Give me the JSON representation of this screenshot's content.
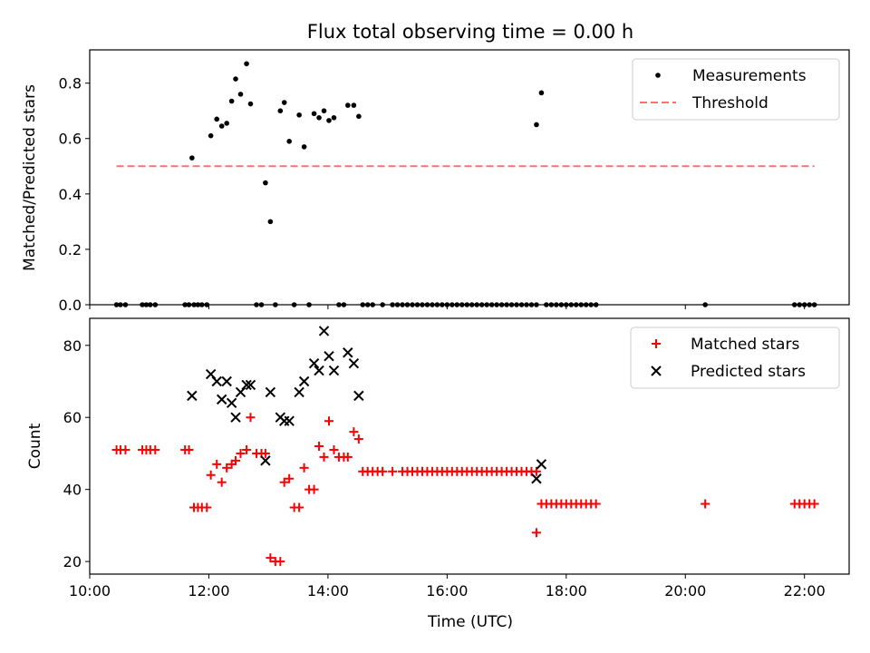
{
  "figure": {
    "title": "Flux total observing time = 0.00 h",
    "xlabel": "Time (UTC)"
  },
  "colors": {
    "measurement": "#000000",
    "threshold": "#ff7070",
    "matched": "#ff0000",
    "predicted": "#000000"
  },
  "chart_data": [
    {
      "type": "scatter",
      "ylabel": "Matched/Predicted stars",
      "xlim": [
        "10:00",
        "22:45"
      ],
      "ylim": [
        0,
        0.92
      ],
      "xticks": [
        "10:00",
        "12:00",
        "14:00",
        "16:00",
        "18:00",
        "20:00",
        "22:00"
      ],
      "yticks": [
        0.0,
        0.2,
        0.4,
        0.6,
        0.8
      ],
      "ytick_labels": [
        "0.0",
        "0.2",
        "0.4",
        "0.6",
        "0.8"
      ],
      "legend": {
        "location": "top-right",
        "entries": [
          "Measurements",
          "Threshold"
        ]
      },
      "series": [
        {
          "name": "Measurements",
          "marker": "dot",
          "points": [
            [
              "10:27",
              0
            ],
            [
              "10:31",
              0
            ],
            [
              "10:36",
              0
            ],
            [
              "10:53",
              0
            ],
            [
              "10:57",
              0
            ],
            [
              "11:01",
              0
            ],
            [
              "11:06",
              0
            ],
            [
              "11:36",
              0
            ],
            [
              "11:40",
              0
            ],
            [
              "11:45",
              0
            ],
            [
              "11:49",
              0
            ],
            [
              "11:53",
              0
            ],
            [
              "11:58",
              0
            ],
            [
              "11:43",
              0.53
            ],
            [
              "12:02",
              0.61
            ],
            [
              "12:08",
              0.67
            ],
            [
              "12:13",
              0.645
            ],
            [
              "12:18",
              0.655
            ],
            [
              "12:23",
              0.735
            ],
            [
              "12:27",
              0.815
            ],
            [
              "12:32",
              0.76
            ],
            [
              "12:38",
              0.87
            ],
            [
              "12:42",
              0.725
            ],
            [
              "12:48",
              0
            ],
            [
              "12:53",
              0
            ],
            [
              "12:57",
              0.44
            ],
            [
              "13:02",
              0.3
            ],
            [
              "13:07",
              0
            ],
            [
              "13:12",
              0.7
            ],
            [
              "13:16",
              0.73
            ],
            [
              "13:21",
              0.59
            ],
            [
              "13:26",
              0
            ],
            [
              "13:31",
              0.685
            ],
            [
              "13:36",
              0.57
            ],
            [
              "13:41",
              0
            ],
            [
              "13:46",
              0.69
            ],
            [
              "13:51",
              0.675
            ],
            [
              "13:56",
              0.7
            ],
            [
              "14:01",
              0.665
            ],
            [
              "14:06",
              0.675
            ],
            [
              "14:11",
              0
            ],
            [
              "14:16",
              0
            ],
            [
              "14:20",
              0.72
            ],
            [
              "14:26",
              0.72
            ],
            [
              "14:31",
              0.68
            ],
            [
              "14:35",
              0
            ],
            [
              "14:40",
              0
            ],
            [
              "14:45",
              0
            ],
            [
              "14:55",
              0
            ],
            [
              "15:05",
              0
            ],
            [
              "15:10",
              0
            ],
            [
              "15:15",
              0
            ],
            [
              "15:20",
              0
            ],
            [
              "15:25",
              0
            ],
            [
              "15:30",
              0
            ],
            [
              "15:35",
              0
            ],
            [
              "15:40",
              0
            ],
            [
              "15:45",
              0
            ],
            [
              "15:50",
              0
            ],
            [
              "15:55",
              0
            ],
            [
              "16:00",
              0
            ],
            [
              "16:05",
              0
            ],
            [
              "16:10",
              0
            ],
            [
              "16:15",
              0
            ],
            [
              "16:20",
              0
            ],
            [
              "16:25",
              0
            ],
            [
              "16:30",
              0
            ],
            [
              "16:35",
              0
            ],
            [
              "16:40",
              0
            ],
            [
              "16:45",
              0
            ],
            [
              "16:50",
              0
            ],
            [
              "16:55",
              0
            ],
            [
              "17:00",
              0
            ],
            [
              "17:05",
              0
            ],
            [
              "17:10",
              0
            ],
            [
              "17:15",
              0
            ],
            [
              "17:20",
              0
            ],
            [
              "17:25",
              0
            ],
            [
              "17:30",
              0
            ],
            [
              "17:30",
              0.65
            ],
            [
              "17:35",
              0.765
            ],
            [
              "17:40",
              0
            ],
            [
              "17:45",
              0
            ],
            [
              "17:50",
              0
            ],
            [
              "17:55",
              0
            ],
            [
              "18:00",
              0
            ],
            [
              "18:05",
              0
            ],
            [
              "18:10",
              0
            ],
            [
              "18:15",
              0
            ],
            [
              "18:20",
              0
            ],
            [
              "18:25",
              0
            ],
            [
              "18:30",
              0
            ],
            [
              "20:20",
              0
            ],
            [
              "21:50",
              0
            ],
            [
              "21:55",
              0
            ],
            [
              "22:00",
              0
            ],
            [
              "22:05",
              0
            ],
            [
              "22:10",
              0
            ]
          ]
        },
        {
          "name": "Threshold",
          "style": "dashed-line",
          "points": [
            [
              "10:27",
              0.5
            ],
            [
              "22:10",
              0.5
            ]
          ]
        }
      ]
    },
    {
      "type": "scatter",
      "ylabel": "Count",
      "xlim": [
        "10:00",
        "22:45"
      ],
      "ylim": [
        16.5,
        87.5
      ],
      "xticks": [
        "10:00",
        "12:00",
        "14:00",
        "16:00",
        "18:00",
        "20:00",
        "22:00"
      ],
      "yticks": [
        20,
        40,
        60,
        80
      ],
      "ytick_labels": [
        "20",
        "40",
        "60",
        "80"
      ],
      "legend": {
        "location": "top-right",
        "entries": [
          "Matched stars",
          "Predicted stars"
        ]
      },
      "series": [
        {
          "name": "Matched stars",
          "marker": "plus",
          "points": [
            [
              "10:27",
              51
            ],
            [
              "10:31",
              51
            ],
            [
              "10:36",
              51
            ],
            [
              "10:53",
              51
            ],
            [
              "10:57",
              51
            ],
            [
              "11:01",
              51
            ],
            [
              "11:06",
              51
            ],
            [
              "11:36",
              51
            ],
            [
              "11:40",
              51
            ],
            [
              "11:45",
              35
            ],
            [
              "11:49",
              35
            ],
            [
              "11:53",
              35
            ],
            [
              "11:58",
              35
            ],
            [
              "12:02",
              44
            ],
            [
              "12:08",
              47
            ],
            [
              "12:13",
              42
            ],
            [
              "12:18",
              46
            ],
            [
              "12:23",
              47
            ],
            [
              "12:27",
              48
            ],
            [
              "12:32",
              50
            ],
            [
              "12:38",
              51
            ],
            [
              "12:42",
              60
            ],
            [
              "12:48",
              50
            ],
            [
              "12:53",
              50
            ],
            [
              "12:57",
              50
            ],
            [
              "13:02",
              21
            ],
            [
              "13:07",
              20
            ],
            [
              "13:12",
              20
            ],
            [
              "13:16",
              42
            ],
            [
              "13:21",
              43
            ],
            [
              "13:26",
              35
            ],
            [
              "13:31",
              35
            ],
            [
              "13:36",
              46
            ],
            [
              "13:41",
              40
            ],
            [
              "13:46",
              40
            ],
            [
              "13:51",
              52
            ],
            [
              "13:56",
              49
            ],
            [
              "14:01",
              59
            ],
            [
              "14:06",
              51
            ],
            [
              "14:11",
              49
            ],
            [
              "14:16",
              49
            ],
            [
              "14:20",
              49
            ],
            [
              "14:26",
              56
            ],
            [
              "14:31",
              54
            ],
            [
              "14:35",
              45
            ],
            [
              "14:40",
              45
            ],
            [
              "14:45",
              45
            ],
            [
              "14:50",
              45
            ],
            [
              "14:55",
              45
            ],
            [
              "15:05",
              45
            ],
            [
              "15:15",
              45
            ],
            [
              "15:20",
              45
            ],
            [
              "15:25",
              45
            ],
            [
              "15:30",
              45
            ],
            [
              "15:35",
              45
            ],
            [
              "15:40",
              45
            ],
            [
              "15:45",
              45
            ],
            [
              "15:50",
              45
            ],
            [
              "15:55",
              45
            ],
            [
              "16:00",
              45
            ],
            [
              "16:05",
              45
            ],
            [
              "16:10",
              45
            ],
            [
              "16:15",
              45
            ],
            [
              "16:20",
              45
            ],
            [
              "16:25",
              45
            ],
            [
              "16:30",
              45
            ],
            [
              "16:35",
              45
            ],
            [
              "16:40",
              45
            ],
            [
              "16:45",
              45
            ],
            [
              "16:50",
              45
            ],
            [
              "16:55",
              45
            ],
            [
              "17:00",
              45
            ],
            [
              "17:05",
              45
            ],
            [
              "17:10",
              45
            ],
            [
              "17:15",
              45
            ],
            [
              "17:20",
              45
            ],
            [
              "17:25",
              45
            ],
            [
              "17:30",
              45
            ],
            [
              "17:30",
              28
            ],
            [
              "17:35",
              36
            ],
            [
              "17:40",
              36
            ],
            [
              "17:45",
              36
            ],
            [
              "17:50",
              36
            ],
            [
              "17:55",
              36
            ],
            [
              "18:00",
              36
            ],
            [
              "18:05",
              36
            ],
            [
              "18:10",
              36
            ],
            [
              "18:15",
              36
            ],
            [
              "18:20",
              36
            ],
            [
              "18:25",
              36
            ],
            [
              "18:30",
              36
            ],
            [
              "20:20",
              36
            ],
            [
              "21:50",
              36
            ],
            [
              "21:55",
              36
            ],
            [
              "22:00",
              36
            ],
            [
              "22:05",
              36
            ],
            [
              "22:10",
              36
            ]
          ]
        },
        {
          "name": "Predicted stars",
          "marker": "x",
          "points": [
            [
              "11:43",
              66
            ],
            [
              "12:02",
              72
            ],
            [
              "12:08",
              70
            ],
            [
              "12:13",
              65
            ],
            [
              "12:18",
              70
            ],
            [
              "12:23",
              64
            ],
            [
              "12:27",
              60
            ],
            [
              "12:32",
              67
            ],
            [
              "12:38",
              69
            ],
            [
              "12:42",
              69
            ],
            [
              "12:57",
              48
            ],
            [
              "13:02",
              67
            ],
            [
              "13:12",
              60
            ],
            [
              "13:16",
              59
            ],
            [
              "13:21",
              59
            ],
            [
              "13:31",
              67
            ],
            [
              "13:36",
              70
            ],
            [
              "13:46",
              75
            ],
            [
              "13:51",
              73
            ],
            [
              "13:56",
              84
            ],
            [
              "14:01",
              77
            ],
            [
              "14:06",
              73
            ],
            [
              "14:20",
              78
            ],
            [
              "14:26",
              75
            ],
            [
              "14:31",
              66
            ],
            [
              "17:30",
              43
            ],
            [
              "17:35",
              47
            ]
          ]
        }
      ]
    }
  ]
}
